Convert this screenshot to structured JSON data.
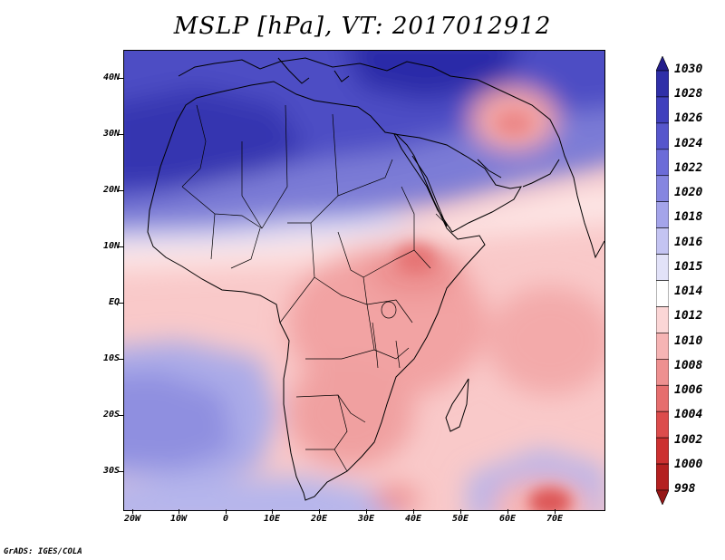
{
  "title": "MSLP [hPa], VT: 2017012912",
  "footer": "GrADS: IGES/COLA",
  "map": {
    "lat_labels": [
      "40N",
      "30N",
      "20N",
      "10N",
      "EQ",
      "10S",
      "20S",
      "30S"
    ],
    "lon_labels": [
      "20W",
      "10W",
      "0",
      "10E",
      "20E",
      "30E",
      "40E",
      "50E",
      "60E",
      "70E"
    ]
  },
  "colorbar": {
    "levels": [
      "1030",
      "1028",
      "1026",
      "1024",
      "1022",
      "1020",
      "1018",
      "1016",
      "1015",
      "1014",
      "1012",
      "1010",
      "1008",
      "1006",
      "1004",
      "1002",
      "1000",
      "998"
    ],
    "colors": [
      "#241e8c",
      "#2f2fa8",
      "#4040bd",
      "#5656cc",
      "#6c6cd8",
      "#8686e0",
      "#a4a4ea",
      "#c4c4f2",
      "#e2e2f8",
      "#ffffff",
      "#fbd6d6",
      "#f6b4b4",
      "#ee9090",
      "#e66e6e",
      "#dc4c4c",
      "#cc3030",
      "#b42020",
      "#961616"
    ]
  }
}
